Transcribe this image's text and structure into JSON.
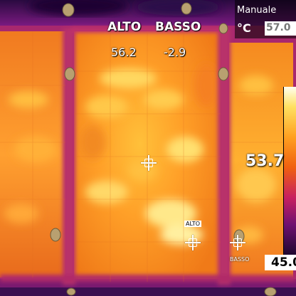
{
  "overlay": {
    "high_label": "ALTO",
    "low_label": "BASSO",
    "high_value": "56.2",
    "low_value": "-2.9"
  },
  "scale": {
    "mode": "Manuale",
    "unit": "°C",
    "max": "57.0",
    "min": "45.0"
  },
  "center_spot": {
    "value": "53.7"
  },
  "markers": {
    "hot_tag": "ALTO",
    "cold_tag": "BASSO"
  },
  "colors": {
    "hot": "#fff4a0",
    "warm": "#ffb02a",
    "mid": "#f07a18",
    "frame": "#c02878",
    "cool": "#5a147a",
    "cold": "#1a0630"
  }
}
